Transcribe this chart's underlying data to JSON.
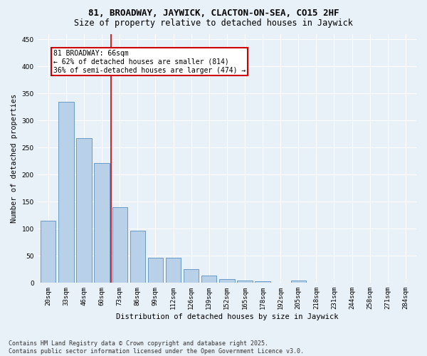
{
  "title": "81, BROADWAY, JAYWICK, CLACTON-ON-SEA, CO15 2HF",
  "subtitle": "Size of property relative to detached houses in Jaywick",
  "xlabel": "Distribution of detached houses by size in Jaywick",
  "ylabel": "Number of detached properties",
  "categories": [
    "20sqm",
    "33sqm",
    "46sqm",
    "60sqm",
    "73sqm",
    "86sqm",
    "99sqm",
    "112sqm",
    "126sqm",
    "139sqm",
    "152sqm",
    "165sqm",
    "178sqm",
    "192sqm",
    "205sqm",
    "218sqm",
    "231sqm",
    "244sqm",
    "258sqm",
    "271sqm",
    "284sqm"
  ],
  "values": [
    115,
    335,
    268,
    222,
    140,
    97,
    46,
    46,
    26,
    13,
    7,
    5,
    3,
    0,
    5,
    0,
    0,
    0,
    0,
    0,
    0
  ],
  "bar_color": "#b8d0e8",
  "bar_edge_color": "#5a8fc0",
  "vline_x": 3.5,
  "vline_color": "#cc0000",
  "annotation_box_text": "81 BROADWAY: 66sqm\n← 62% of detached houses are smaller (814)\n36% of semi-detached houses are larger (474) →",
  "annotation_box_color": "#cc0000",
  "ylim": [
    0,
    460
  ],
  "yticks": [
    0,
    50,
    100,
    150,
    200,
    250,
    300,
    350,
    400,
    450
  ],
  "background_color": "#e8f0f8",
  "plot_bg_color": "#e8f0f8",
  "grid_color": "#ffffff",
  "footer_text": "Contains HM Land Registry data © Crown copyright and database right 2025.\nContains public sector information licensed under the Open Government Licence v3.0.",
  "title_fontsize": 9,
  "subtitle_fontsize": 8.5,
  "axis_label_fontsize": 7.5,
  "tick_fontsize": 6.5,
  "annotation_fontsize": 7,
  "footer_fontsize": 6
}
